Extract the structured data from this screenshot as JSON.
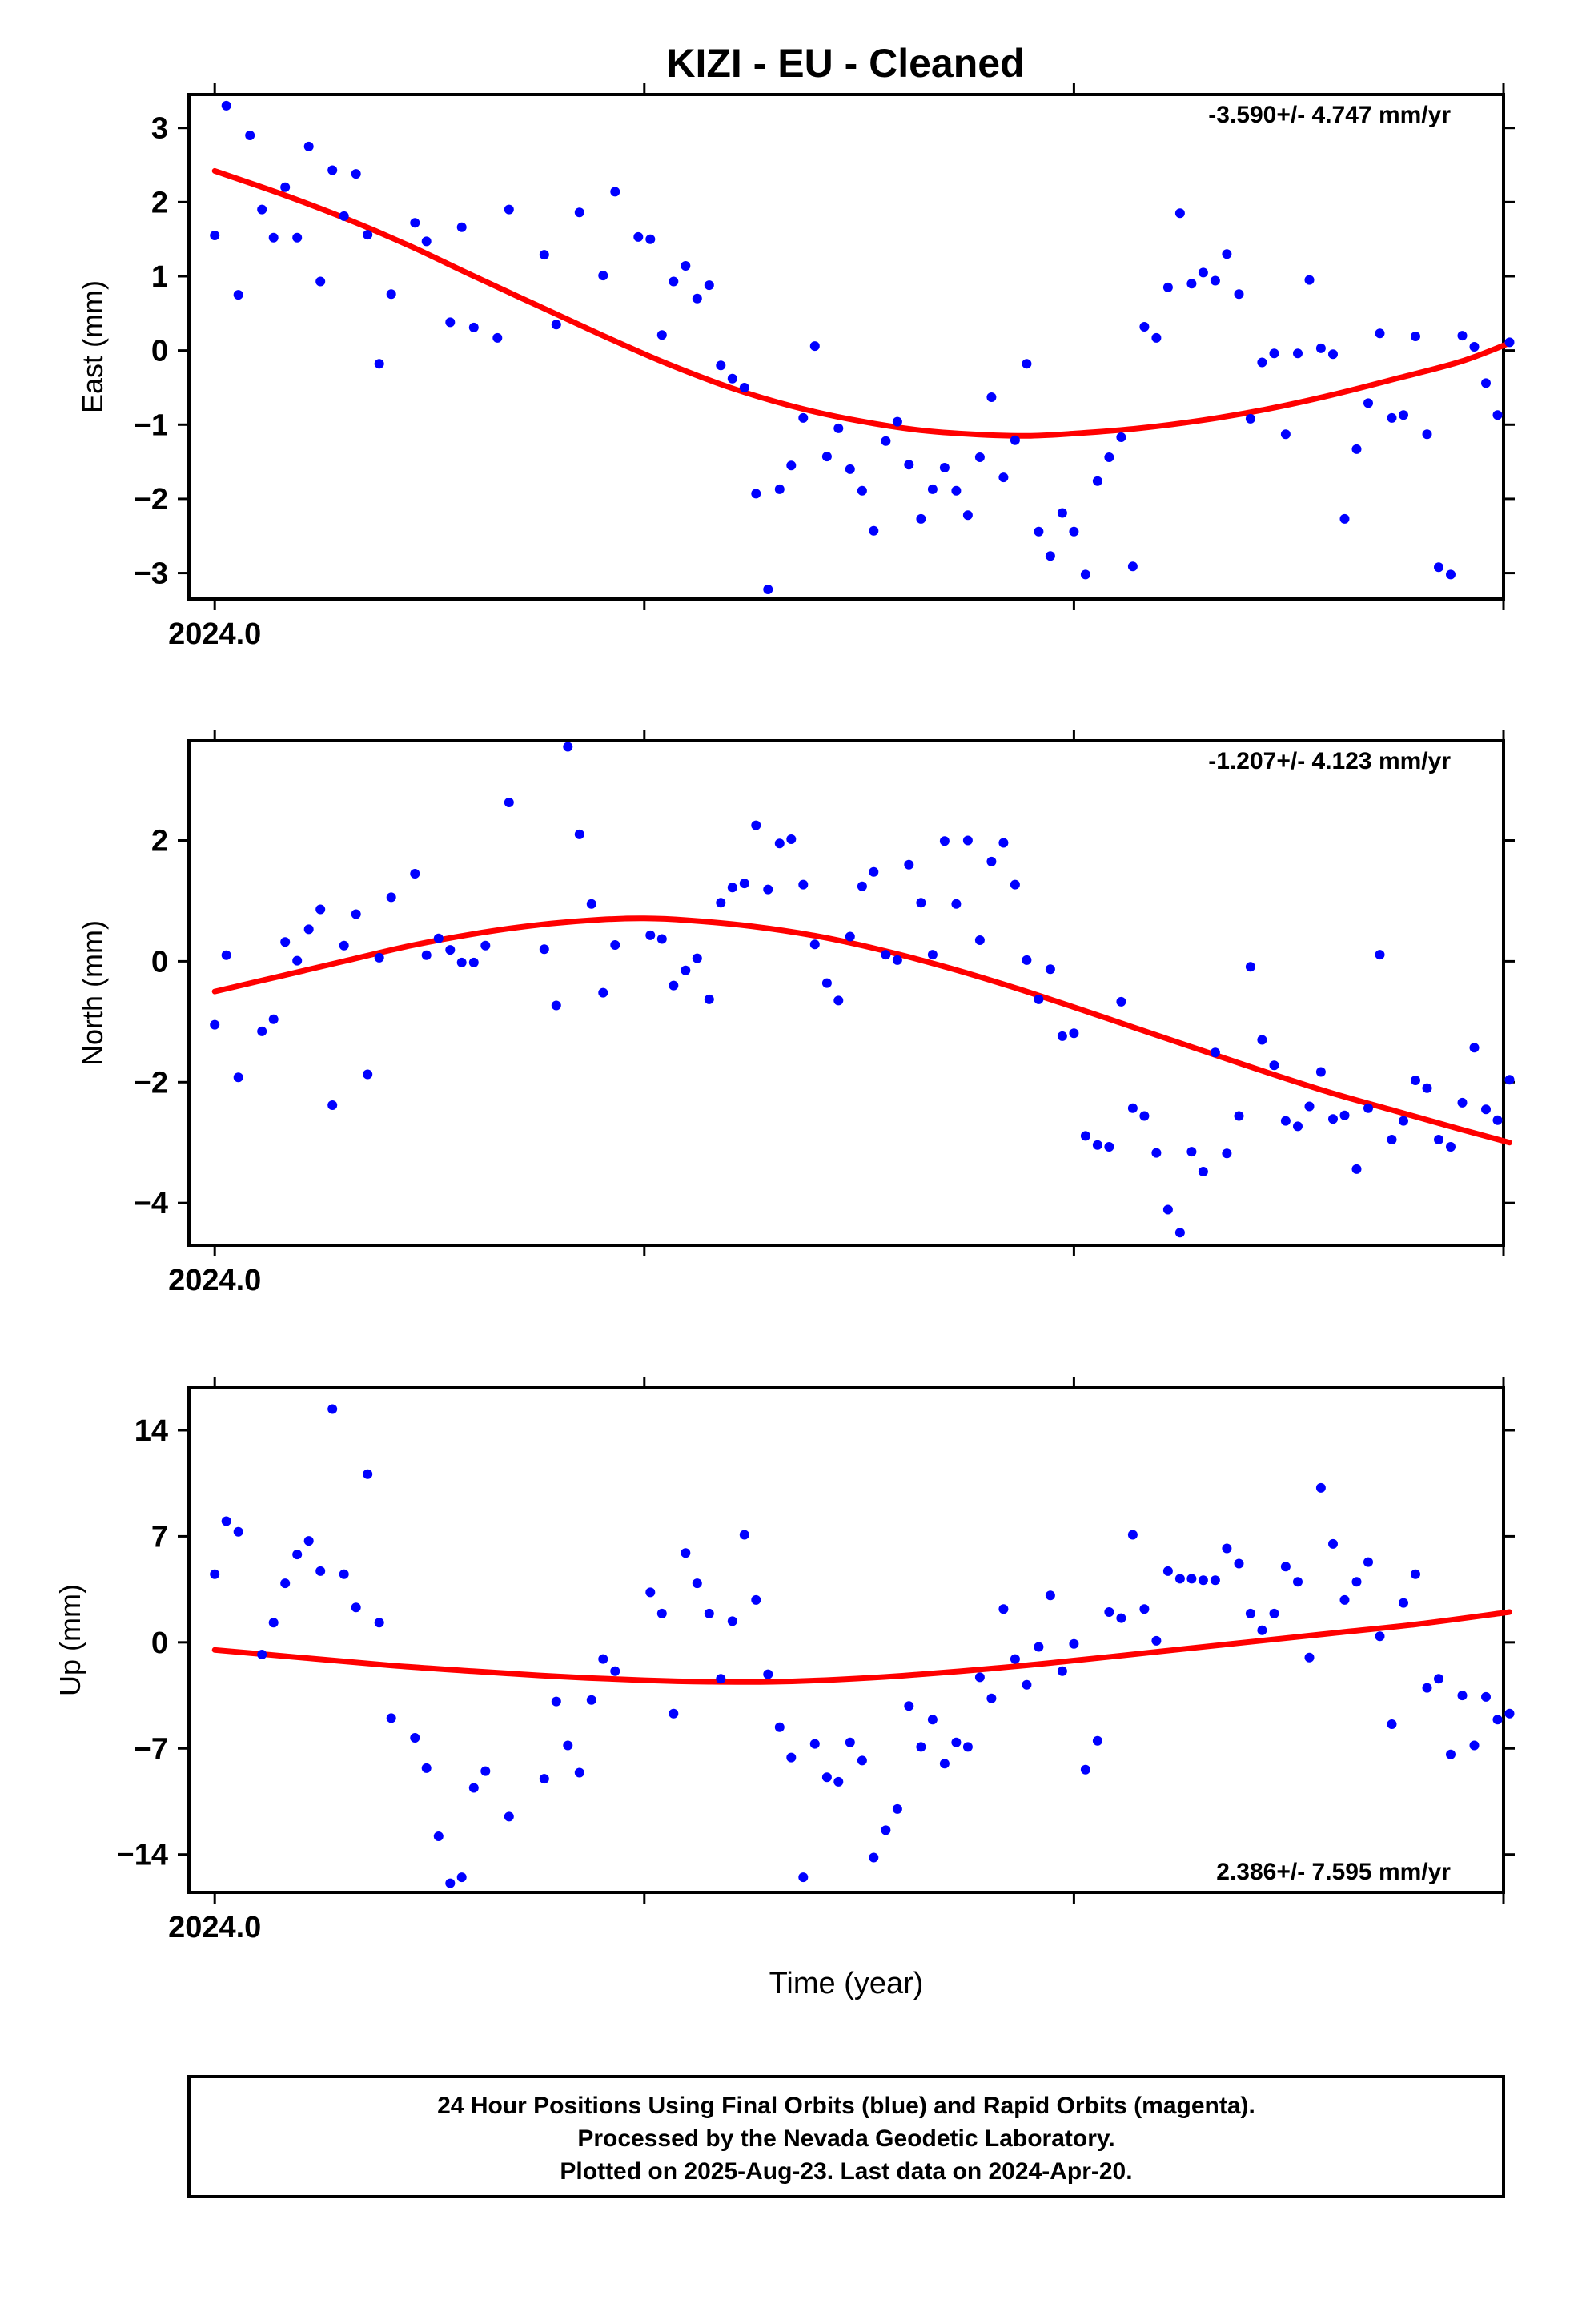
{
  "title": "KIZI  - EU - Cleaned",
  "xlabel": "Time (year)",
  "colors": {
    "final_orbits": "#0000ff",
    "fit_line": "#ff0000",
    "frame": "#000000"
  },
  "footer": {
    "line1": "24 Hour Positions Using Final Orbits (blue) and Rapid Orbits (magenta).",
    "line2": "Processed by the Nevada Geodetic Laboratory.",
    "line3": "Plotted on 2025-Aug-23. Last data on 2024-Apr-20."
  },
  "chart_data": [
    {
      "type": "scatter",
      "panel": "east",
      "ylabel": "East (mm)",
      "rate_text": "-3.590+/- 4.747 mm/yr",
      "rate_position": "top-right",
      "xlim": [
        2023.994,
        2024.3
      ],
      "ylim": [
        -3.35,
        3.45
      ],
      "xticks": [
        2024.0,
        2024.1,
        2024.2,
        2024.3
      ],
      "xticklabels": [
        "2024.0",
        "",
        "",
        ""
      ],
      "yticks": [
        3,
        2,
        1,
        0,
        -1,
        -2,
        -3
      ],
      "yticklabels": [
        "3",
        "2",
        "1",
        "0",
        "−1",
        "−2",
        "−3"
      ],
      "series": [
        {
          "role": "daily positions",
          "x": [
            2024.0,
            2024.0027,
            2024.0055,
            2024.0082,
            2024.011,
            2024.0137,
            2024.0164,
            2024.0192,
            2024.0219,
            2024.0246,
            2024.0274,
            2024.0301,
            2024.0329,
            2024.0356,
            2024.0383,
            2024.0411,
            2024.0466,
            2024.0493,
            2024.0548,
            2024.0575,
            2024.0603,
            2024.0658,
            2024.0685,
            2024.0767,
            2024.0795,
            2024.0849,
            2024.0904,
            2024.0932,
            2024.0986,
            2024.1014,
            2024.1041,
            2024.1068,
            2024.1096,
            2024.1123,
            2024.1151,
            2024.1178,
            2024.1205,
            2024.1233,
            2024.126,
            2024.1288,
            2024.1315,
            2024.1342,
            2024.137,
            2024.1397,
            2024.1425,
            2024.1452,
            2024.1479,
            2024.1507,
            2024.1534,
            2024.1562,
            2024.1589,
            2024.1616,
            2024.1644,
            2024.1671,
            2024.1699,
            2024.1726,
            2024.1753,
            2024.1781,
            2024.1808,
            2024.1836,
            2024.1863,
            2024.189,
            2024.1918,
            2024.1945,
            2024.1973,
            2024.2,
            2024.2027,
            2024.2055,
            2024.2082,
            2024.211,
            2024.2137,
            2024.2164,
            2024.2192,
            2024.2219,
            2024.2247,
            2024.2274,
            2024.2301,
            2024.2329,
            2024.2356,
            2024.2384,
            2024.2411,
            2024.2438,
            2024.2466,
            2024.2493,
            2024.2521,
            2024.2548,
            2024.2575,
            2024.2603,
            2024.263,
            2024.2658,
            2024.2685,
            2024.2712,
            2024.274,
            2024.2767,
            2024.2795,
            2024.2822,
            2024.2849,
            2024.2877,
            2024.2904,
            2024.2932,
            2024.2959,
            2024.2986,
            2024.3014
          ],
          "y": [
            1.55,
            3.3,
            0.75,
            2.9,
            1.9,
            1.52,
            2.2,
            1.52,
            2.75,
            0.93,
            2.43,
            1.81,
            2.38,
            1.56,
            -0.18,
            0.76,
            1.72,
            1.47,
            0.38,
            1.66,
            0.31,
            0.17,
            1.9,
            1.29,
            0.35,
            1.86,
            1.01,
            2.14,
            1.53,
            1.5,
            0.21,
            0.93,
            1.14,
            0.7,
            0.88,
            -0.2,
            -0.38,
            -0.5,
            -1.93,
            -3.22,
            -1.87,
            -1.55,
            -0.91,
            0.06,
            -1.43,
            -1.05,
            -1.6,
            -1.89,
            -2.43,
            -1.22,
            -0.96,
            -1.54,
            -2.27,
            -1.87,
            -1.58,
            -1.89,
            -2.22,
            -1.44,
            -0.63,
            -1.71,
            -1.21,
            -0.18,
            -2.44,
            -2.77,
            -2.19,
            -2.44,
            -3.02,
            -1.76,
            -1.44,
            -1.17,
            -2.91,
            0.32,
            0.17,
            0.85,
            1.85,
            0.9,
            1.05,
            0.94,
            1.3,
            0.76,
            -0.92,
            -0.16,
            -0.04,
            -1.13,
            -0.04,
            0.95,
            0.03,
            -0.05,
            -2.27,
            -1.33,
            -0.71,
            0.23,
            -0.91,
            -0.87,
            0.19,
            -1.13,
            -2.92,
            -3.02,
            0.2,
            0.05,
            -0.44,
            -0.87,
            0.11
          ]
        },
        {
          "role": "fit",
          "x": [
            2024.0,
            2024.015,
            2024.03,
            2024.045,
            2024.06,
            2024.075,
            2024.09,
            2024.105,
            2024.12,
            2024.135,
            2024.15,
            2024.165,
            2024.18,
            2024.19,
            2024.2,
            2024.215,
            2024.23,
            2024.245,
            2024.26,
            2024.275,
            2024.29,
            2024.3014
          ],
          "y": [
            2.42,
            2.12,
            1.79,
            1.42,
            1.01,
            0.61,
            0.21,
            -0.17,
            -0.5,
            -0.76,
            -0.95,
            -1.08,
            -1.14,
            -1.15,
            -1.12,
            -1.05,
            -0.94,
            -0.79,
            -0.6,
            -0.38,
            -0.15,
            0.1
          ]
        }
      ]
    },
    {
      "type": "scatter",
      "panel": "north",
      "ylabel": "North (mm)",
      "rate_text": "-1.207+/- 4.123 mm/yr",
      "rate_position": "top-right",
      "xlim": [
        2023.994,
        2024.3
      ],
      "ylim": [
        -4.7,
        3.65
      ],
      "xticks": [
        2024.0,
        2024.1,
        2024.2,
        2024.3
      ],
      "xticklabels": [
        "2024.0",
        "",
        "",
        ""
      ],
      "yticks": [
        2,
        0,
        -2,
        -4
      ],
      "yticklabels": [
        "2",
        "0",
        "−2",
        "−4"
      ],
      "series": [
        {
          "role": "daily positions",
          "x": [
            2024.0,
            2024.0027,
            2024.0055,
            2024.011,
            2024.0137,
            2024.0164,
            2024.0192,
            2024.0219,
            2024.0246,
            2024.0274,
            2024.0301,
            2024.0329,
            2024.0356,
            2024.0383,
            2024.0411,
            2024.0466,
            2024.0493,
            2024.0521,
            2024.0548,
            2024.0575,
            2024.0603,
            2024.063,
            2024.0685,
            2024.0767,
            2024.0795,
            2024.0822,
            2024.0849,
            2024.0877,
            2024.0904,
            2024.0932,
            2024.1014,
            2024.1041,
            2024.1068,
            2024.1096,
            2024.1123,
            2024.1151,
            2024.1178,
            2024.1205,
            2024.1233,
            2024.126,
            2024.1288,
            2024.1315,
            2024.1342,
            2024.137,
            2024.1397,
            2024.1425,
            2024.1452,
            2024.1479,
            2024.1507,
            2024.1534,
            2024.1562,
            2024.1589,
            2024.1616,
            2024.1644,
            2024.1671,
            2024.1699,
            2024.1726,
            2024.1753,
            2024.1781,
            2024.1808,
            2024.1836,
            2024.1863,
            2024.189,
            2024.1918,
            2024.1945,
            2024.1973,
            2024.2,
            2024.2027,
            2024.2055,
            2024.2082,
            2024.211,
            2024.2137,
            2024.2164,
            2024.2192,
            2024.2219,
            2024.2247,
            2024.2274,
            2024.2301,
            2024.2329,
            2024.2356,
            2024.2384,
            2024.2411,
            2024.2438,
            2024.2466,
            2024.2493,
            2024.2521,
            2024.2548,
            2024.2575,
            2024.2603,
            2024.263,
            2024.2658,
            2024.2685,
            2024.2712,
            2024.274,
            2024.2767,
            2024.2795,
            2024.2822,
            2024.2849,
            2024.2877,
            2024.2904,
            2024.2932,
            2024.2959,
            2024.2986,
            2024.3014
          ],
          "y": [
            -1.05,
            0.1,
            -1.92,
            -1.16,
            -0.96,
            0.32,
            0.01,
            0.53,
            0.86,
            -2.38,
            0.26,
            0.78,
            -1.87,
            0.06,
            1.06,
            1.45,
            0.1,
            0.38,
            0.19,
            -0.02,
            -0.02,
            0.26,
            2.63,
            0.2,
            -0.73,
            3.55,
            2.1,
            0.95,
            -0.52,
            0.27,
            0.43,
            0.37,
            -0.4,
            -0.15,
            0.05,
            -0.63,
            0.97,
            1.22,
            1.29,
            2.25,
            1.19,
            1.95,
            2.02,
            1.27,
            0.28,
            -0.36,
            -0.65,
            0.41,
            1.24,
            1.48,
            0.11,
            0.02,
            1.6,
            0.97,
            0.11,
            1.99,
            0.95,
            2.0,
            0.35,
            1.65,
            1.96,
            1.27,
            0.02,
            -0.63,
            -0.13,
            -1.24,
            -1.19,
            -2.89,
            -3.04,
            -3.07,
            -0.67,
            -2.43,
            -2.56,
            -3.17,
            -4.11,
            -4.49,
            -3.15,
            -3.48,
            -1.51,
            -3.18,
            -2.56,
            -0.09,
            -1.3,
            -1.72,
            -2.64,
            -2.73,
            -2.4,
            -1.83,
            -2.61,
            -2.55,
            -3.44,
            -2.43,
            0.11,
            -2.95,
            -2.64,
            -1.97,
            -2.1,
            -2.95,
            -3.07,
            -2.34,
            -1.43,
            -2.45,
            -2.63,
            -1.96
          ],
          "note": "x values estimated from the plot"
        },
        {
          "role": "fit",
          "x": [
            2024.0,
            2024.015,
            2024.03,
            2024.045,
            2024.06,
            2024.075,
            2024.09,
            2024.1,
            2024.11,
            2024.125,
            2024.14,
            2024.155,
            2024.17,
            2024.185,
            2024.2,
            2024.215,
            2024.23,
            2024.245,
            2024.26,
            2024.275,
            2024.29,
            2024.3014
          ],
          "y": [
            -0.5,
            -0.25,
            0.0,
            0.25,
            0.45,
            0.6,
            0.69,
            0.71,
            0.68,
            0.58,
            0.42,
            0.19,
            -0.09,
            -0.41,
            -0.76,
            -1.12,
            -1.48,
            -1.84,
            -2.18,
            -2.48,
            -2.78,
            -3.0
          ]
        }
      ]
    },
    {
      "type": "scatter",
      "panel": "up",
      "ylabel": "Up (mm)",
      "rate_text": "2.386+/- 7.595 mm/yr",
      "rate_position": "bottom-right",
      "xlim": [
        2023.994,
        2024.3
      ],
      "ylim": [
        -16.5,
        16.8
      ],
      "xticks": [
        2024.0,
        2024.1,
        2024.2,
        2024.3
      ],
      "xticklabels": [
        "2024.0",
        "",
        "",
        ""
      ],
      "yticks": [
        14,
        7,
        0,
        -7,
        -14
      ],
      "yticklabels": [
        "14",
        "7",
        "0",
        "−7",
        "−14"
      ],
      "series": [
        {
          "role": "daily positions",
          "x": [
            2024.0,
            2024.0027,
            2024.0055,
            2024.011,
            2024.0137,
            2024.0164,
            2024.0192,
            2024.0219,
            2024.0246,
            2024.0274,
            2024.0301,
            2024.0329,
            2024.0356,
            2024.0383,
            2024.0411,
            2024.0466,
            2024.0493,
            2024.0521,
            2024.0548,
            2024.0575,
            2024.0603,
            2024.063,
            2024.0685,
            2024.0767,
            2024.0795,
            2024.0822,
            2024.0849,
            2024.0877,
            2024.0904,
            2024.0932,
            2024.1014,
            2024.1041,
            2024.1068,
            2024.1096,
            2024.1123,
            2024.1151,
            2024.1178,
            2024.1205,
            2024.1233,
            2024.126,
            2024.1288,
            2024.1315,
            2024.1342,
            2024.137,
            2024.1397,
            2024.1425,
            2024.1452,
            2024.1479,
            2024.1507,
            2024.1534,
            2024.1562,
            2024.1589,
            2024.1616,
            2024.1644,
            2024.1671,
            2024.1699,
            2024.1726,
            2024.1753,
            2024.1781,
            2024.1808,
            2024.1836,
            2024.1863,
            2024.189,
            2024.1918,
            2024.1945,
            2024.1973,
            2024.2,
            2024.2027,
            2024.2055,
            2024.2082,
            2024.211,
            2024.2137,
            2024.2164,
            2024.2192,
            2024.2219,
            2024.2247,
            2024.2274,
            2024.2301,
            2024.2329,
            2024.2356,
            2024.2384,
            2024.2411,
            2024.2438,
            2024.2466,
            2024.2493,
            2024.2521,
            2024.2548,
            2024.2575,
            2024.2603,
            2024.263,
            2024.2658,
            2024.2685,
            2024.2712,
            2024.274,
            2024.2767,
            2024.2795,
            2024.2822,
            2024.2849,
            2024.2877,
            2024.2904,
            2024.2932,
            2024.2959,
            2024.2986,
            2024.3014
          ],
          "y": [
            4.5,
            8.0,
            7.3,
            -0.8,
            1.3,
            3.9,
            5.8,
            6.7,
            4.7,
            15.4,
            4.5,
            2.3,
            11.1,
            1.3,
            -5.0,
            -6.3,
            -8.3,
            -12.8,
            -15.9,
            -15.5,
            -9.6,
            -8.5,
            -11.5,
            -9.0,
            -3.9,
            -6.8,
            -8.6,
            -3.8,
            -1.1,
            -1.9,
            3.3,
            1.9,
            -4.7,
            5.9,
            3.9,
            1.9,
            -2.4,
            1.4,
            7.1,
            2.8,
            -2.1,
            -5.6,
            -7.6,
            -15.5,
            -6.7,
            -8.9,
            -9.2,
            -6.6,
            -7.8,
            -14.2,
            -12.4,
            -11.0,
            -4.2,
            -6.9,
            -5.1,
            -8.0,
            -6.6,
            -6.9,
            -2.3,
            -3.7,
            2.2,
            -1.1,
            -2.8,
            -0.3,
            3.1,
            -1.9,
            -0.1,
            -8.4,
            -6.5,
            2.0,
            1.6,
            7.1,
            2.2,
            0.1,
            4.7,
            4.2,
            4.2,
            4.1,
            4.1,
            6.2,
            5.2,
            1.9,
            0.8,
            1.9,
            5.0,
            4.0,
            -1.0,
            10.2,
            6.5,
            2.8,
            4.0,
            5.3,
            0.4,
            -5.4,
            2.6,
            4.5,
            -3.0,
            -2.4,
            -7.4,
            -3.5,
            -6.8,
            -3.6,
            -5.1,
            -4.7
          ],
          "note": "x values estimated from the plot"
        },
        {
          "role": "fit",
          "x": [
            2024.0,
            2024.02,
            2024.04,
            2024.06,
            2024.08,
            2024.1,
            2024.115,
            2024.13,
            2024.145,
            2024.16,
            2024.18,
            2024.2,
            2024.22,
            2024.24,
            2024.26,
            2024.28,
            2024.3014
          ],
          "y": [
            -0.5,
            -1.0,
            -1.5,
            -1.9,
            -2.25,
            -2.5,
            -2.6,
            -2.6,
            -2.45,
            -2.2,
            -1.75,
            -1.2,
            -0.6,
            0.0,
            0.6,
            1.2,
            2.0
          ]
        }
      ]
    }
  ]
}
